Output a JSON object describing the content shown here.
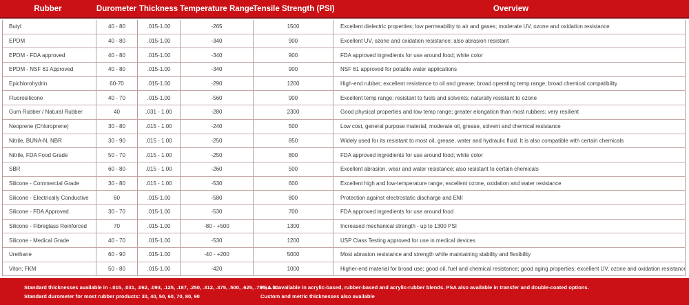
{
  "colors": {
    "accent_red": "#cb1016",
    "header_underline": "#8a1116",
    "grid_border": "#b89b9b",
    "body_text": "#3a3a3a",
    "header_text": "#ffffff"
  },
  "table": {
    "headers": [
      "Rubber",
      "Durometer",
      "Thickness",
      "Temperature Range",
      "Tensile Strength (PSI)",
      "Overview"
    ],
    "rows": [
      {
        "name": "Butyl",
        "durometer": "40 - 80",
        "thickness": ".015-1.00",
        "temperature": "-265",
        "tensile": "1500",
        "overview": "Excellent dielectric properties; low permeability to air and gases; moderate UV, ozone and oxidation resistance"
      },
      {
        "name": "EPDM",
        "durometer": "40 - 80",
        "thickness": ".015-1.00",
        "temperature": "-340",
        "tensile": "900",
        "overview": "Excellent UV, ozone and oxidation resistance; also abrasion resistant"
      },
      {
        "name": "EPDM - FDA approved",
        "durometer": "40 - 80",
        "thickness": ".015-1.00",
        "temperature": "-340",
        "tensile": "900",
        "overview": "FDA approved ingredients for use around food; white color"
      },
      {
        "name": "EPDM - NSF 61 Approved",
        "durometer": "40 - 80",
        "thickness": ".015-1.00",
        "temperature": "-340",
        "tensile": "900",
        "overview": "NSF 61 approved for potable water applications"
      },
      {
        "name": "Epichlorohydrin",
        "durometer": "60-70",
        "thickness": ".015-1.00",
        "temperature": "-290",
        "tensile": "1200",
        "overview": "High-end rubber; excellent resistance to oil and grease; broad operating temp range; broad chemical compatibility"
      },
      {
        "name": "Fluorosilicone",
        "durometer": "40 - 70",
        "thickness": ".015-1.00",
        "temperature": "-560",
        "tensile": "900",
        "overview": "Excellent temp range; resistant to fuels and solvents; naturally resistant to ozone"
      },
      {
        "name": "Gum Rubber / Natural Rubber",
        "durometer": "40",
        "thickness": ".031 - 1.00",
        "temperature": "-280",
        "tensile": "2300",
        "overview": "Good physical properties and low temp range; greater elongation than most rubbers; very resilient"
      },
      {
        "name": "Neoprene (Chloroprene)",
        "durometer": "30 - 80",
        "thickness": ".015 - 1.00",
        "temperature": "-240",
        "tensile": "500",
        "overview": "Low cost, general purpose material; moderate oil, grease, solvent and chemical resistance"
      },
      {
        "name": "Nitrile, BUNA-N, NBR",
        "durometer": "30 - 90",
        "thickness": ".015 - 1.00",
        "temperature": "-250",
        "tensile": "850",
        "overview": "Widely used for its resistant to most oil, grease, water and hydraulic fluid.  It is also compatible with certain chemicals"
      },
      {
        "name": "Nitrile, FDA Food Grade",
        "durometer": "50 - 70",
        "thickness": ".015 - 1.00",
        "temperature": "-250",
        "tensile": "800",
        "overview": "FDA approved ingredients for use around food; white color"
      },
      {
        "name": "SBR",
        "durometer": "60 - 80",
        "thickness": ".015 - 1.00",
        "temperature": "-260",
        "tensile": "500",
        "overview": "Excellent abrasion, wear and water resistance; also resistant to certain chemicals"
      },
      {
        "name": "Silicone - Commercial Grade",
        "durometer": "30 - 80",
        "thickness": ".015 - 1.00",
        "temperature": "-530",
        "tensile": "600",
        "overview": "Excellent high and low-temperature range; excellent ozone, oxidation and water resistance"
      },
      {
        "name": "Silicone - Electrically Conductive",
        "durometer": "60",
        "thickness": ".015-1.00",
        "temperature": "-580",
        "tensile": "800",
        "overview": "Protection against electrostatic discharge and EMI"
      },
      {
        "name": "Silicone - FDA Approved",
        "durometer": "30 - 70",
        "thickness": ".015-1.00",
        "temperature": "-530",
        "tensile": "700",
        "overview": "FDA approved ingredients for use around food"
      },
      {
        "name": "Silicone - Fibreglass Reinforced",
        "durometer": "70",
        "thickness": ".015-1.00",
        "temperature": "-80 - +500",
        "tensile": "1300",
        "overview": "Increased mechanical strength - up to 1300 PSI"
      },
      {
        "name": "Silicone - Medical Grade",
        "durometer": "40 - 70",
        "thickness": ".015-1.00",
        "temperature": "-530",
        "tensile": "1200",
        "overview": "USP Class Testing approved for use in medical devices"
      },
      {
        "name": "Urethane",
        "durometer": "60 - 90",
        "thickness": ".015-1.00",
        "temperature": "-40 - +200",
        "tensile": "5000",
        "overview": "Most abrasion resistance and strength while maintaining stability and flexibility"
      },
      {
        "name": "Viton; FKM",
        "durometer": "50 - 80",
        "thickness": ".015-1.00",
        "temperature": "-420",
        "tensile": "1000",
        "overview": "Higher-end material for broad use; good oil, fuel and chemical resistance; good aging properties; excellent UV, ozone and oxidation resistance"
      }
    ]
  },
  "footer": {
    "left_line1": "Standard thicknesses available in -.015, .031, .062, .093, .125, .187, .250, .312, .375, .500, .625, .750, 1.00.",
    "left_line2": "Standard durometer for most rubber products: 30, 40, 50, 60, 70, 80, 90",
    "right_line1": "PSA is available in acrylic-based, rubber-based and acrylic-rubber blends. PSA also available in transfer and double-coated options.",
    "right_line2": "Custom and metric thicknesses also available"
  }
}
